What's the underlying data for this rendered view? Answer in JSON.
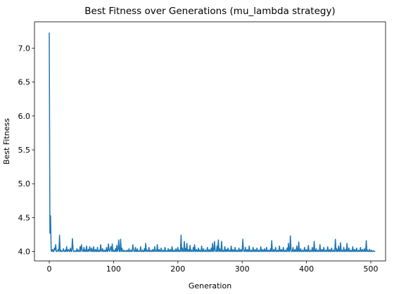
{
  "chart_data": {
    "type": "line",
    "title": "Best Fitness over Generations (mu_lambda strategy)",
    "xlabel": "Generation",
    "ylabel": "Best Fitness",
    "xlim": [
      -23,
      523
    ],
    "ylim": [
      3.86,
      7.39
    ],
    "xticks": [
      0,
      100,
      200,
      300,
      400,
      500
    ],
    "yticks": [
      4.0,
      4.5,
      5.0,
      5.5,
      6.0,
      6.5,
      7.0
    ],
    "xtick_labels": [
      "0",
      "100",
      "200",
      "300",
      "400",
      "500"
    ],
    "ytick_labels": [
      "4.0",
      "4.5",
      "5.0",
      "5.5",
      "6.0",
      "6.5",
      "7.0"
    ],
    "grid": false,
    "legend": "none",
    "series_color": "#1f77b4",
    "series": [
      {
        "x_start": 0,
        "values": [
          7.23,
          4.27,
          4.53,
          4.01,
          4.0,
          4.03,
          4.0,
          4.0,
          4.05,
          4.02,
          4.1,
          4.0,
          4.0,
          4.01,
          4.03,
          4.0,
          4.24,
          4.0,
          4.02,
          4.0,
          4.0,
          4.01,
          4.04,
          4.0,
          4.0,
          4.02,
          4.0,
          4.07,
          4.0,
          4.01,
          4.03,
          4.0,
          4.0,
          4.05,
          4.0,
          4.0,
          4.19,
          4.04,
          4.0,
          4.0,
          4.01,
          4.0,
          4.0,
          4.04,
          4.0,
          4.02,
          4.0,
          4.0,
          4.07,
          4.0,
          4.1,
          4.03,
          4.0,
          4.0,
          4.06,
          4.0,
          4.02,
          4.0,
          4.08,
          4.0,
          4.0,
          4.03,
          4.0,
          4.07,
          4.02,
          4.0,
          4.05,
          4.0,
          4.0,
          4.07,
          4.0,
          4.0,
          4.03,
          4.0,
          4.0,
          4.06,
          4.0,
          4.0,
          4.02,
          4.0,
          4.1,
          4.01,
          4.0,
          4.04,
          4.0,
          4.0,
          4.02,
          4.0,
          4.0,
          4.06,
          4.0,
          4.0,
          4.11,
          4.02,
          4.0,
          4.04,
          4.07,
          4.0,
          4.11,
          4.0,
          4.02,
          4.0,
          4.0,
          4.04,
          4.0,
          4.09,
          4.0,
          4.03,
          4.17,
          4.0,
          4.0,
          4.18,
          4.0,
          4.05,
          4.0,
          4.0,
          4.02,
          4.0,
          4.0,
          4.01,
          4.0,
          4.02,
          4.0,
          4.0,
          4.04,
          4.0,
          4.0,
          4.02,
          4.0,
          4.0,
          4.1,
          4.02,
          4.0,
          4.0,
          4.06,
          4.0,
          4.0,
          4.04,
          4.0,
          4.01,
          4.0,
          4.0,
          4.07,
          4.0,
          4.0,
          4.02,
          4.0,
          4.0,
          4.04,
          4.0,
          4.12,
          4.0,
          4.02,
          4.0,
          4.0,
          4.06,
          4.0,
          4.0,
          4.02,
          4.0,
          4.0,
          4.03,
          4.0,
          4.0,
          4.07,
          4.0,
          4.01,
          4.0,
          4.1,
          4.0,
          4.0,
          4.03,
          4.0,
          4.0,
          4.05,
          4.0,
          4.0,
          4.02,
          4.0,
          4.0,
          4.06,
          4.0,
          4.0,
          4.01,
          4.0,
          4.04,
          4.0,
          4.0,
          4.03,
          4.0,
          4.0,
          4.07,
          4.0,
          4.0,
          4.02,
          4.0,
          4.0,
          4.04,
          4.0,
          4.0,
          4.06,
          4.0,
          4.0,
          4.02,
          4.0,
          4.24,
          4.0,
          4.05,
          4.0,
          4.0,
          4.15,
          4.0,
          4.04,
          4.0,
          4.12,
          4.0,
          4.0,
          4.03,
          4.0,
          4.09,
          4.0,
          4.02,
          4.0,
          4.0,
          4.06,
          4.0,
          4.1,
          4.0,
          4.0,
          4.03,
          4.0,
          4.0,
          4.05,
          4.0,
          4.02,
          4.0,
          4.0,
          4.08,
          4.0,
          4.0,
          4.04,
          4.0,
          4.0,
          4.02,
          4.0,
          4.0,
          4.06,
          4.0,
          4.0,
          4.03,
          4.0,
          4.0,
          4.05,
          4.0,
          4.12,
          4.0,
          4.0,
          4.15,
          4.02,
          4.0,
          4.0,
          4.08,
          4.0,
          4.17,
          4.0,
          4.04,
          4.0,
          4.0,
          4.15,
          4.0,
          4.02,
          4.0,
          4.0,
          4.07,
          4.0,
          4.0,
          4.03,
          4.0,
          4.05,
          4.0,
          4.0,
          4.02,
          4.0,
          4.08,
          4.0,
          4.0,
          4.03,
          4.0,
          4.0,
          4.06,
          4.0,
          4.0,
          4.02,
          4.0,
          4.0,
          4.05,
          4.0,
          4.0,
          4.03,
          4.0,
          4.0,
          4.18,
          4.02,
          4.0,
          4.0,
          4.06,
          4.0,
          4.0,
          4.03,
          4.0,
          4.0,
          4.08,
          4.0,
          4.0,
          4.02,
          4.0,
          4.0,
          4.06,
          4.0,
          4.0,
          4.03,
          4.0,
          4.0,
          4.05,
          4.0,
          4.0,
          4.02,
          4.0,
          4.0,
          4.07,
          4.0,
          4.0,
          4.03,
          4.0,
          4.0,
          4.04,
          4.0,
          4.0,
          4.06,
          4.0,
          4.0,
          4.02,
          4.0,
          4.0,
          4.04,
          4.0,
          4.16,
          4.0,
          4.0,
          4.03,
          4.0,
          4.0,
          4.06,
          4.0,
          4.0,
          4.02,
          4.0,
          4.0,
          4.08,
          4.0,
          4.0,
          4.03,
          4.0,
          4.0,
          4.06,
          4.0,
          4.0,
          4.02,
          4.0,
          4.0,
          4.05,
          4.0,
          4.12,
          4.0,
          4.0,
          4.23,
          4.02,
          4.0,
          4.0,
          4.06,
          4.0,
          4.0,
          4.03,
          4.0,
          4.0,
          4.08,
          4.0,
          4.0,
          4.14,
          4.0,
          4.0,
          4.04,
          4.0,
          4.0,
          4.02,
          4.0,
          4.0,
          4.06,
          4.0,
          4.0,
          4.03,
          4.0,
          4.0,
          4.09,
          4.0,
          4.0,
          4.02,
          4.0,
          4.0,
          4.06,
          4.0,
          4.0,
          4.15,
          4.0,
          4.0,
          4.04,
          4.0,
          4.0,
          4.02,
          4.0,
          4.0,
          4.1,
          4.0,
          4.0,
          4.03,
          4.0,
          4.0,
          4.06,
          4.0,
          4.0,
          4.02,
          4.0,
          4.0,
          4.07,
          4.0,
          4.0,
          4.03,
          4.0,
          4.0,
          4.05,
          4.0,
          4.0,
          4.02,
          4.0,
          4.0,
          4.18,
          4.0,
          4.04,
          4.0,
          4.0,
          4.08,
          4.0,
          4.0,
          4.13,
          4.0,
          4.02,
          4.0,
          4.0,
          4.06,
          4.0,
          4.0,
          4.03,
          4.0,
          4.12,
          4.0,
          4.0,
          4.05,
          4.0,
          4.0,
          4.02,
          4.0,
          4.0,
          4.07,
          4.0,
          4.0,
          4.03,
          4.0,
          4.0,
          4.05,
          4.0,
          4.0,
          4.02,
          4.0,
          4.0,
          4.06,
          4.0,
          4.0,
          4.03,
          4.0,
          4.0,
          4.04,
          4.0,
          4.0,
          4.16,
          4.0,
          4.02,
          4.0,
          4.0,
          4.03,
          4.0,
          4.0,
          4.02,
          4.0,
          4.0,
          4.01,
          4.0,
          4.0,
          4.0
        ]
      }
    ]
  }
}
